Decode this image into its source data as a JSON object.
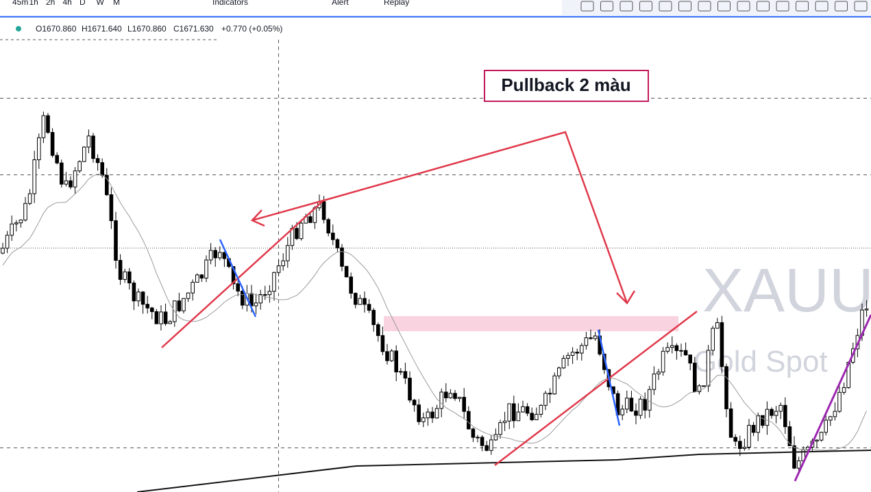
{
  "toolbar": {
    "intervals": [
      "45m",
      "1h",
      "2h",
      "4h",
      "D",
      "W",
      "M"
    ],
    "indicators": "Indicators",
    "alert": "Alert",
    "replay": "Replay"
  },
  "legend": {
    "open": "O1670.860",
    "high": "H1671.640",
    "low": "L1670.860",
    "close": "C1671.630",
    "change": "+0.770 (+0.05%)"
  },
  "annotation": "Pullback 2 màu",
  "watermark": {
    "symbol": "XAUUSD",
    "name": "Gold Spot"
  }
}
